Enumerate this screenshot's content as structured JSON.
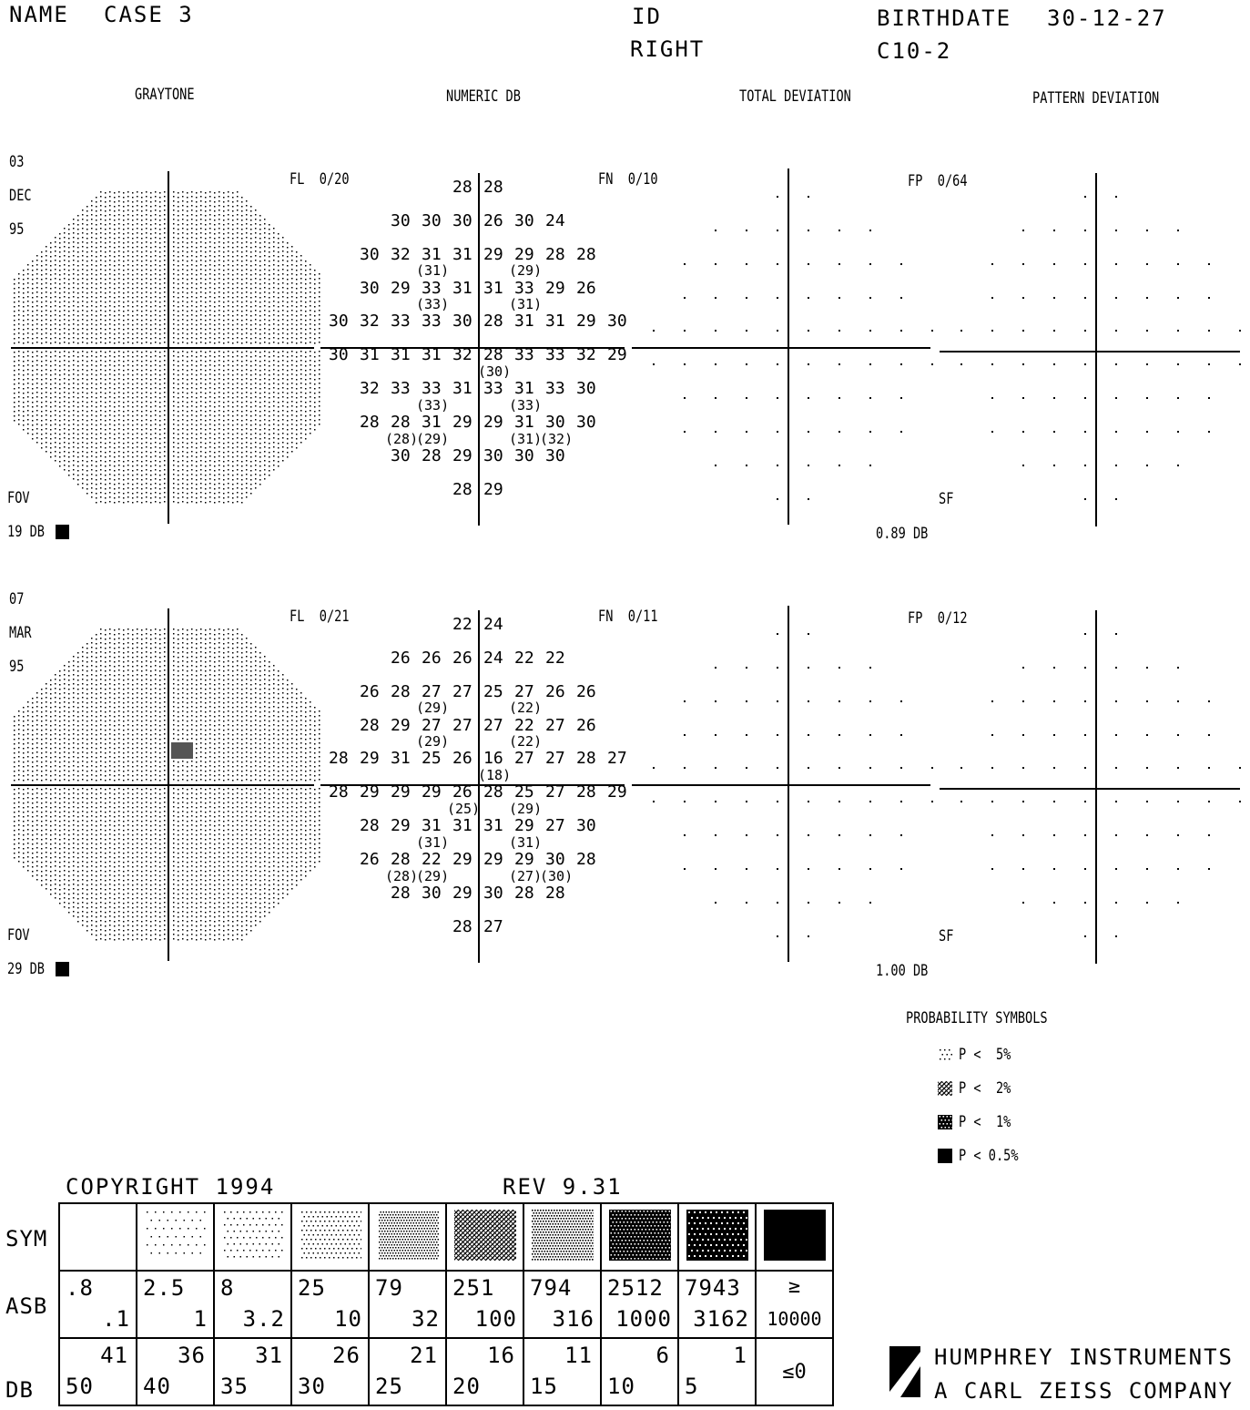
{
  "header": {
    "name_label": "NAME",
    "name_value": "CASE 3",
    "id_label": "ID",
    "eye": "RIGHT",
    "birthdate_label": "BIRTHDATE",
    "birthdate_value": "30-12-27",
    "program": "C10-2"
  },
  "column_titles": [
    "GRAYTONE",
    "NUMERIC DB",
    "TOTAL DEVIATION",
    "PATTERN DEVIATION"
  ],
  "tests": [
    {
      "date_day": "03",
      "date_month": "DEC",
      "date_year": "95",
      "fl": "FL  0/20",
      "fn": "FN  0/10",
      "fp": "FP  0/64",
      "fov": "FOV",
      "fov_db": "19 DB",
      "sf": "SF",
      "sf_db": "0.89 DB",
      "numeric_rows": [
        {
          "row": 1,
          "values": [
            "28",
            "28"
          ],
          "start": 4
        },
        {
          "row": 2,
          "values": [
            "30",
            "30",
            "30",
            "26",
            "30",
            "24"
          ],
          "start": 2
        },
        {
          "row": 3,
          "values": [
            "30",
            "32",
            "31",
            "31",
            "29",
            "29",
            "28",
            "28"
          ],
          "start": 1
        },
        {
          "row": 4,
          "values": [
            "30",
            "29",
            "33",
            "31",
            "31",
            "33",
            "29",
            "26"
          ],
          "start": 1
        },
        {
          "row": 5,
          "values": [
            "30",
            "32",
            "33",
            "33",
            "30",
            "28",
            "31",
            "31",
            "29",
            "30"
          ],
          "start": 0
        },
        {
          "row": 6,
          "values": [
            "30",
            "31",
            "31",
            "31",
            "32",
            "28",
            "33",
            "33",
            "32",
            "29"
          ],
          "start": 0
        },
        {
          "row": 7,
          "values": [
            "32",
            "33",
            "33",
            "31",
            "33",
            "31",
            "33",
            "30"
          ],
          "start": 1
        },
        {
          "row": 8,
          "values": [
            "28",
            "28",
            "31",
            "29",
            "29",
            "31",
            "30",
            "30"
          ],
          "start": 1
        },
        {
          "row": 9,
          "values": [
            "30",
            "28",
            "29",
            "30",
            "30",
            "30"
          ],
          "start": 2
        },
        {
          "row": 10,
          "values": [
            "28",
            "29"
          ],
          "start": 4
        }
      ],
      "repeats": [
        {
          "label": "(31)",
          "row": 3.5,
          "col": 3
        },
        {
          "label": "(29)",
          "row": 3.5,
          "col": 6
        },
        {
          "label": "(33)",
          "row": 4.5,
          "col": 3
        },
        {
          "label": "(31)",
          "row": 4.5,
          "col": 6
        },
        {
          "label": "(30)",
          "row": 6.5,
          "col": 5
        },
        {
          "label": "(33)",
          "row": 7.5,
          "col": 6
        },
        {
          "label": "(33)",
          "row": 7.5,
          "col": 3
        },
        {
          "label": "(28)",
          "row": 8.5,
          "col": 2
        },
        {
          "label": "(29)",
          "row": 8.5,
          "col": 3
        },
        {
          "label": "(31)",
          "row": 8.5,
          "col": 6
        },
        {
          "label": "(32)",
          "row": 8.5,
          "col": 7
        }
      ]
    },
    {
      "date_day": "07",
      "date_month": "MAR",
      "date_year": "95",
      "fl": "FL  0/21",
      "fn": "FN  0/11",
      "fp": "FP  0/12",
      "fov": "FOV",
      "fov_db": "29 DB",
      "sf": "SF",
      "sf_db": "1.00 DB",
      "numeric_rows": [
        {
          "row": 1,
          "values": [
            "22",
            "24"
          ],
          "start": 4
        },
        {
          "row": 2,
          "values": [
            "26",
            "26",
            "26",
            "24",
            "22",
            "22"
          ],
          "start": 2
        },
        {
          "row": 3,
          "values": [
            "26",
            "28",
            "27",
            "27",
            "25",
            "27",
            "26",
            "26"
          ],
          "start": 1
        },
        {
          "row": 4,
          "values": [
            "28",
            "29",
            "27",
            "27",
            "27",
            "22",
            "27",
            "26"
          ],
          "start": 1
        },
        {
          "row": 5,
          "values": [
            "28",
            "29",
            "31",
            "25",
            "26",
            "16",
            "27",
            "27",
            "28",
            "27"
          ],
          "start": 0
        },
        {
          "row": 6,
          "values": [
            "28",
            "29",
            "29",
            "29",
            "26",
            "28",
            "25",
            "27",
            "28",
            "29"
          ],
          "start": 0
        },
        {
          "row": 7,
          "values": [
            "28",
            "29",
            "31",
            "31",
            "31",
            "29",
            "27",
            "30"
          ],
          "start": 1
        },
        {
          "row": 8,
          "values": [
            "26",
            "28",
            "22",
            "29",
            "29",
            "29",
            "30",
            "28"
          ],
          "start": 1
        },
        {
          "row": 9,
          "values": [
            "28",
            "30",
            "29",
            "30",
            "28",
            "28"
          ],
          "start": 2
        },
        {
          "row": 10,
          "values": [
            "28",
            "27"
          ],
          "start": 4
        }
      ],
      "repeats": [
        {
          "label": "(29)",
          "row": 3.5,
          "col": 3
        },
        {
          "label": "(22)",
          "row": 3.5,
          "col": 6
        },
        {
          "label": "(29)",
          "row": 4.5,
          "col": 3
        },
        {
          "label": "(22)",
          "row": 4.5,
          "col": 6
        },
        {
          "label": "(18)",
          "row": 5.5,
          "col": 5
        },
        {
          "label": "(25)",
          "row": 6.5,
          "col": 4
        },
        {
          "label": "(29)",
          "row": 6.5,
          "col": 6
        },
        {
          "label": "(31)",
          "row": 7.5,
          "col": 3
        },
        {
          "label": "(31)",
          "row": 7.5,
          "col": 6
        },
        {
          "label": "(28)",
          "row": 8.5,
          "col": 2
        },
        {
          "label": "(29)",
          "row": 8.5,
          "col": 3
        },
        {
          "label": "(27)",
          "row": 8.5,
          "col": 6
        },
        {
          "label": "(30)",
          "row": 8.5,
          "col": 7
        }
      ]
    }
  ],
  "probability": {
    "title": "PROBABILITY SYMBOLS",
    "items": [
      {
        "sym": "dots",
        "label": "P <  5%"
      },
      {
        "sym": "cross",
        "label": "P <  2%"
      },
      {
        "sym": "dense",
        "label": "P <  1%"
      },
      {
        "sym": "solid",
        "label": "P < 0.5%"
      }
    ]
  },
  "footer": {
    "copyright": "COPYRIGHT 1994",
    "rev": "REV 9.31",
    "company_line1": "HUMPHREY INSTRUMENTS",
    "company_line2": "A CARL ZEISS COMPANY"
  },
  "legend_table": {
    "row_labels": [
      "SYM",
      "ASB",
      "DB"
    ],
    "asb": [
      {
        "top": ".8",
        "bottom": ".1"
      },
      {
        "top": "2.5",
        "bottom": "1"
      },
      {
        "top": "8",
        "bottom": "3.2"
      },
      {
        "top": "25",
        "bottom": "10"
      },
      {
        "top": "79",
        "bottom": "32"
      },
      {
        "top": "251",
        "bottom": "100"
      },
      {
        "top": "794",
        "bottom": "316"
      },
      {
        "top": "2512",
        "bottom": "1000"
      },
      {
        "top": "7943",
        "bottom": "3162"
      },
      {
        "top": "≥",
        "bottom": "10000"
      }
    ],
    "db": [
      {
        "top": "41",
        "bottom": "50"
      },
      {
        "top": "36",
        "bottom": "40"
      },
      {
        "top": "31",
        "bottom": "35"
      },
      {
        "top": "26",
        "bottom": "30"
      },
      {
        "top": "21",
        "bottom": "25"
      },
      {
        "top": "16",
        "bottom": "20"
      },
      {
        "top": "11",
        "bottom": "15"
      },
      {
        "top": "6",
        "bottom": "10"
      },
      {
        "top": "1",
        "bottom": "5"
      },
      {
        "top": "≤0",
        "bottom": ""
      }
    ]
  }
}
